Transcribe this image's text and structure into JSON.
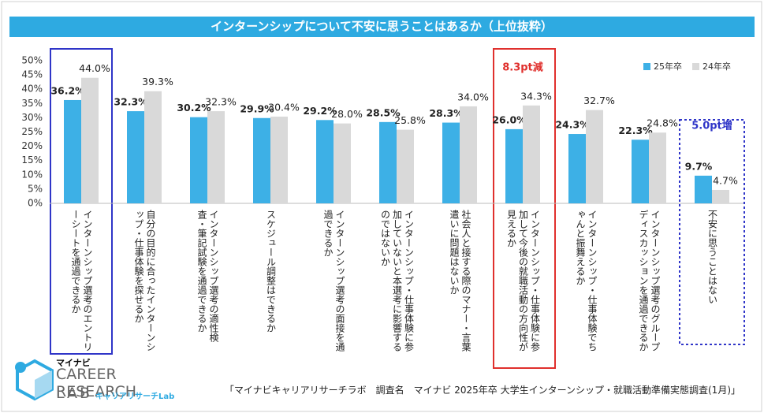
{
  "chart_data": {
    "type": "bar",
    "title": "インターンシップについて不安に思うことはあるか（上位抜粋）",
    "categories": [
      "インターンシップ選考のエントリーシートを通過できるか",
      "自分の目的に合ったインターンシップ・仕事体験を探せるか",
      "インターンシップ選考の適性検査・筆記試験を通過できるか",
      "スケジュール調整はできるか",
      "インターンシップ選考の面接を通過できるか",
      "インターンシップ・仕事体験に参加していないと本選考に影響するのではないか",
      "社会人と接する際のマナー・言葉遣いに問題はないか",
      "インターンシップ・仕事体験に参加して今後の就職活動の方向性が見えるか",
      "インターンシップ・仕事体験でちゃんと振舞えるか",
      "インターンシップ選考のグループディスカッションを通過できるか",
      "不安に思うことはない"
    ],
    "series": [
      {
        "name": "25年卒",
        "color": "#3db0e6",
        "values": [
          36.2,
          32.3,
          30.2,
          29.9,
          29.2,
          28.5,
          28.3,
          26.0,
          24.3,
          22.3,
          9.7
        ],
        "value_labels": [
          "36.2%",
          "32.3%",
          "30.2%",
          "29.9%",
          "29.2%",
          "28.5%",
          "28.3%",
          "26.0%",
          "24.3%",
          "22.3%",
          "9.7%"
        ]
      },
      {
        "name": "24年卒",
        "color": "#d9d9d9",
        "values": [
          44.0,
          39.3,
          32.3,
          30.4,
          28.0,
          25.8,
          34.0,
          34.3,
          32.7,
          24.8,
          4.7
        ],
        "value_labels": [
          "44.0%",
          "39.3%",
          "32.3%",
          "30.4%",
          "28.0%",
          "25.8%",
          "34.0%",
          "34.3%",
          "32.7%",
          "24.8%",
          "4.7%"
        ]
      }
    ],
    "ylim": [
      0,
      50
    ],
    "yticks": [
      {
        "value": 0,
        "label": "0%"
      },
      {
        "value": 5,
        "label": "5%"
      },
      {
        "value": 10,
        "label": "10%"
      },
      {
        "value": 15,
        "label": "15%"
      },
      {
        "value": 20,
        "label": "20%"
      },
      {
        "value": 25,
        "label": "25%"
      },
      {
        "value": 30,
        "label": "30%"
      },
      {
        "value": 35,
        "label": "35%"
      },
      {
        "value": 40,
        "label": "40%"
      },
      {
        "value": 45,
        "label": "45%"
      },
      {
        "value": 50,
        "label": "50%"
      }
    ],
    "grid": false,
    "legend": "top-right",
    "annotations": [
      {
        "text": "8.3pt減",
        "color": "#e0302d",
        "category": 7
      },
      {
        "text": "5.0pt増",
        "color": "#2f35c8",
        "category": 10
      }
    ],
    "source": "「マイナビキャリアリサーチラボ　調査名　マイナビ 2025年卒 大学生インターンシップ・就職活動準備実態調査(1月)」"
  },
  "logo": {
    "brand": "マイナビ",
    "name": "CAREER RESEARCH",
    "lab": "LAB",
    "sub": "キャリアリサーチLab"
  }
}
